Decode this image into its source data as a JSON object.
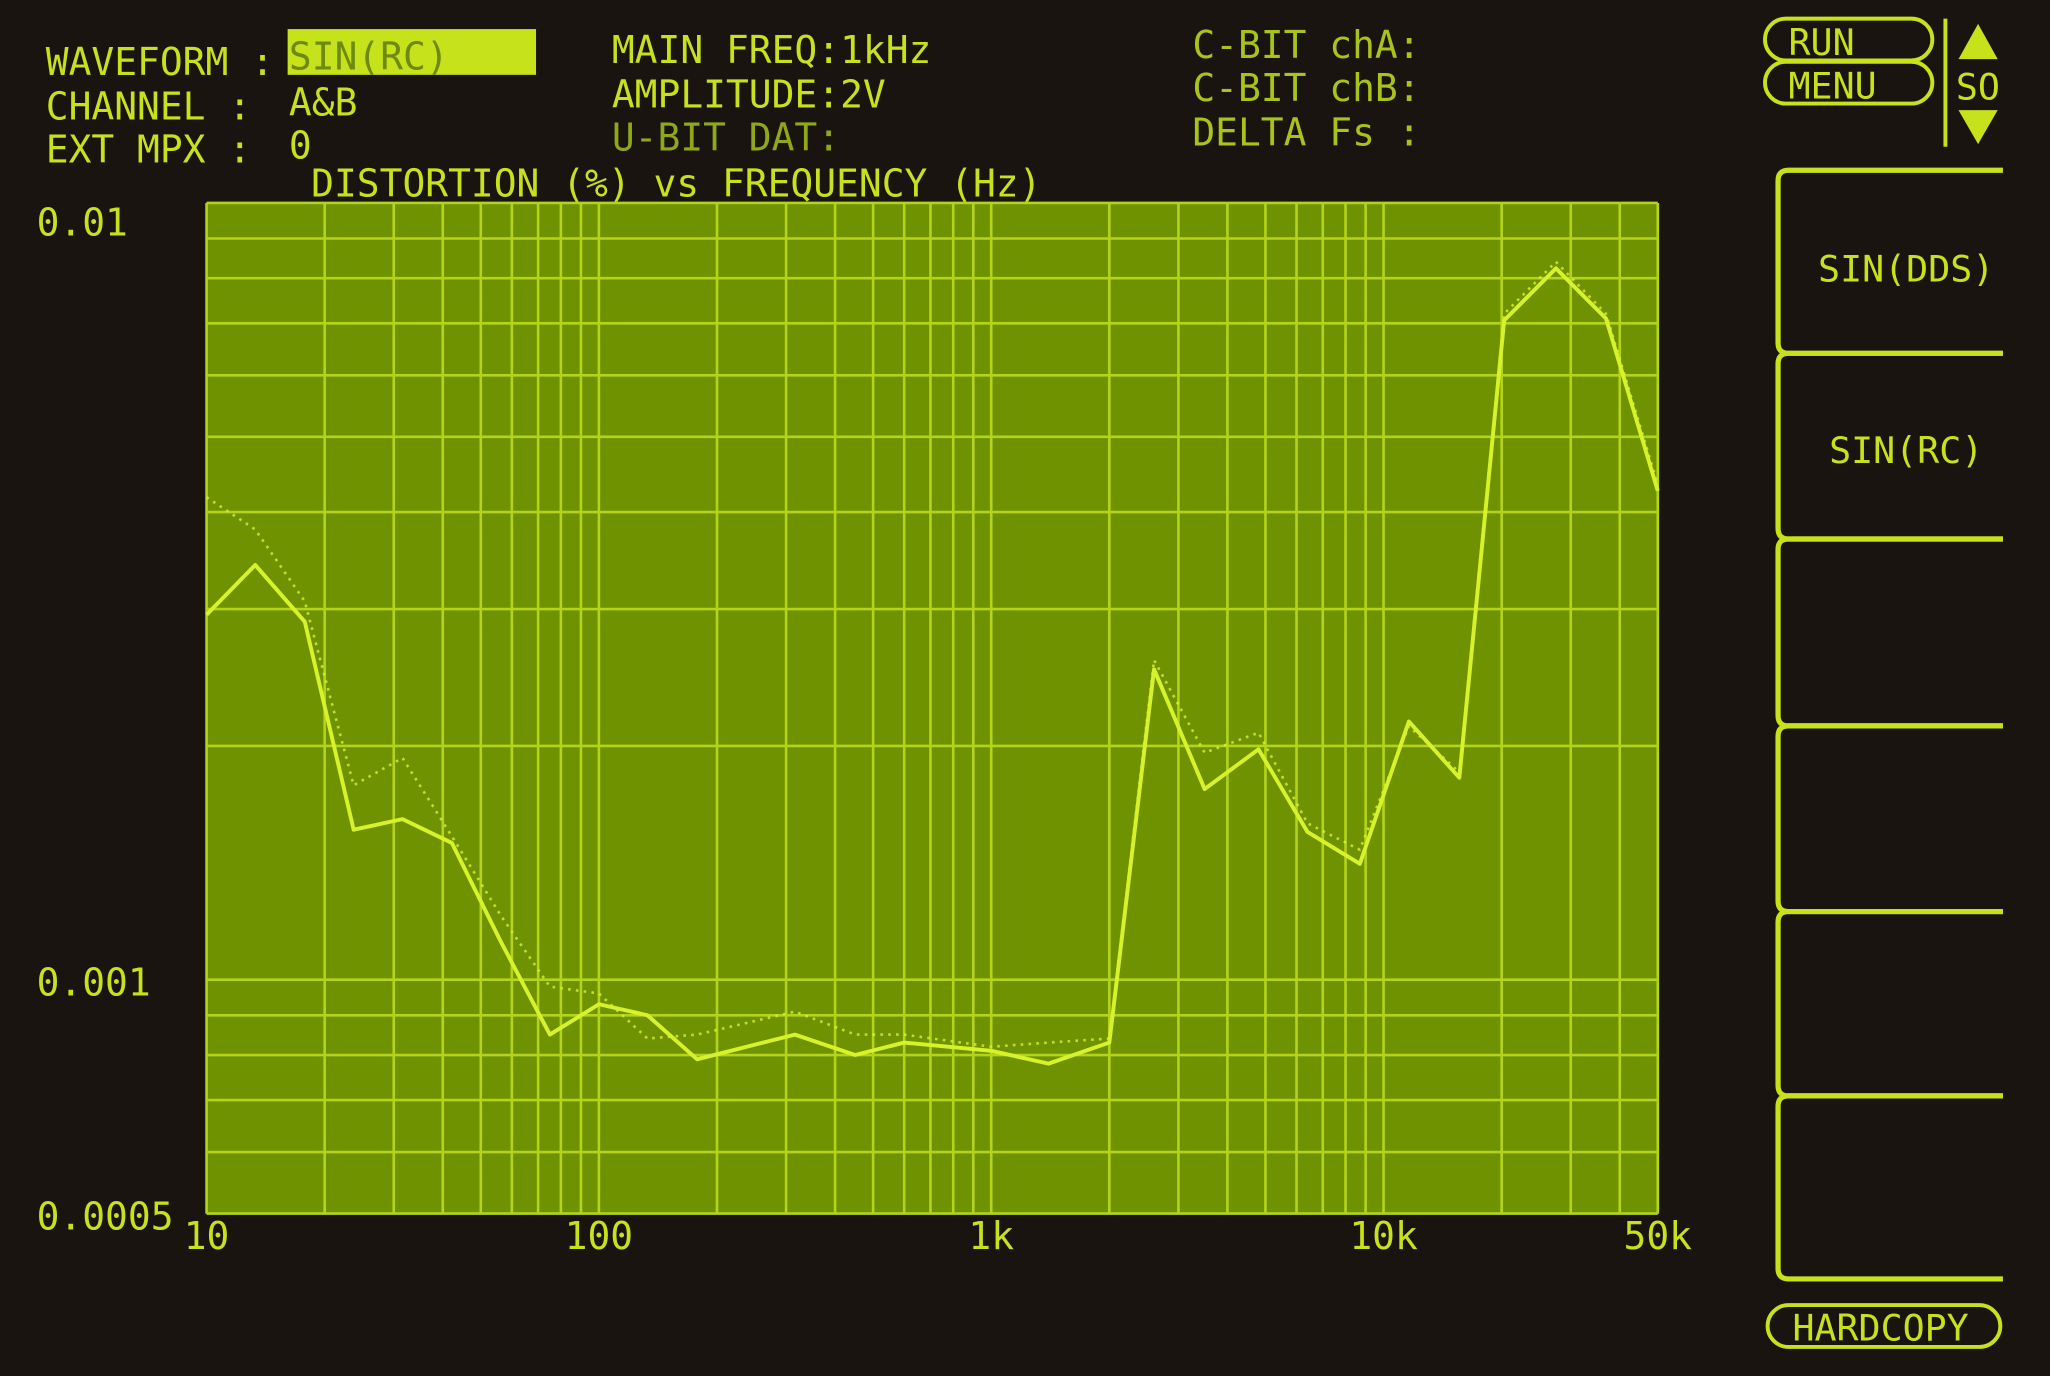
{
  "header": {
    "waveform_label": "WAVEFORM :",
    "waveform_value": "SIN(RC)",
    "channel_label": "CHANNEL :",
    "channel_value": "A&B",
    "ext_mpx_label": "EXT MPX :",
    "ext_mpx_value": "0",
    "main_freq": "MAIN FREQ:1kHz",
    "amplitude": "AMPLITUDE:2V",
    "ubit_dat": "U-BIT DAT:",
    "cbit_cha": "C-BIT chA:",
    "cbit_chb": "C-BIT chB:",
    "delta_fs": "DELTA Fs :"
  },
  "controls": {
    "run": "RUN",
    "menu": "MENU",
    "scroll_label": "SO",
    "up_icon": "triangle-up-icon",
    "down_icon": "triangle-down-icon",
    "hardcopy": "HARDCOPY"
  },
  "softkeys": [
    "SIN(DDS)",
    "SIN(RC)",
    "",
    "",
    "",
    ""
  ],
  "colors": {
    "phosphor": "#c6e21a",
    "plot_bg": "#6e9200",
    "grid": "#b4d41a",
    "trace": "#d8f22a",
    "background": "#1a1410"
  },
  "chart_data": {
    "type": "line",
    "title": "DISTORTION (%) vs FREQUENCY (Hz)",
    "x_scale": "log",
    "y_scale": "log",
    "xlim": [
      10,
      50000
    ],
    "ylim": [
      0.0005,
      0.01
    ],
    "x_ticks": [
      10,
      100,
      1000,
      10000,
      50000
    ],
    "x_tick_labels": [
      "10",
      "100",
      "1k",
      "10k",
      "50k"
    ],
    "y_ticks": [
      0.01,
      0.001,
      0.0005
    ],
    "y_tick_labels": [
      "0.01",
      "0.001",
      "0.0005"
    ],
    "grid": true,
    "series": [
      {
        "style": "solid",
        "x": [
          10,
          13.3,
          17.8,
          23.7,
          31.6,
          42.2,
          56.2,
          75,
          100,
          133,
          178,
          316,
          450,
          600,
          1000,
          1400,
          2000,
          2600,
          3500,
          4800,
          6400,
          8700,
          11600,
          15600,
          20300,
          27500,
          36900,
          50000
        ],
        "y": [
          0.00295,
          0.00342,
          0.00289,
          0.00156,
          0.00161,
          0.0015,
          0.00112,
          0.00085,
          0.00093,
          0.0009,
          0.00079,
          0.00085,
          0.0008,
          0.00083,
          0.00081,
          0.00078,
          0.00083,
          0.00251,
          0.00176,
          0.00198,
          0.00155,
          0.00141,
          0.00215,
          0.00182,
          0.00706,
          0.00824,
          0.0071,
          0.00426
        ]
      },
      {
        "style": "dotted",
        "x": [
          10,
          13.3,
          17.8,
          23.7,
          31.6,
          42.2,
          56.2,
          75,
          100,
          133,
          178,
          316,
          450,
          600,
          1000,
          1400,
          2000,
          2600,
          3500,
          4800,
          6400,
          8700,
          11600,
          15600,
          20300,
          27500,
          36900,
          50000
        ],
        "y": [
          0.00418,
          0.0038,
          0.00307,
          0.00178,
          0.00193,
          0.00153,
          0.00121,
          0.00098,
          0.00096,
          0.00084,
          0.00085,
          0.00091,
          0.00085,
          0.00085,
          0.00082,
          0.00083,
          0.00084,
          0.00258,
          0.00196,
          0.00208,
          0.00159,
          0.00147,
          0.00212,
          0.00185,
          0.0072,
          0.0084,
          0.0072,
          0.00434
        ]
      }
    ]
  }
}
